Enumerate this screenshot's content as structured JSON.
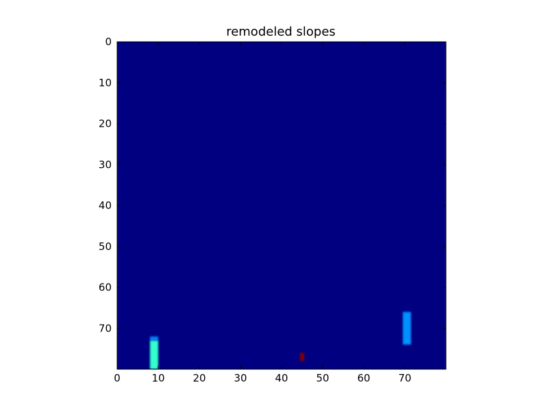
{
  "chart_data": {
    "type": "heatmap",
    "title": "remodeled slopes",
    "xlabel": "",
    "ylabel": "",
    "xlim": [
      0,
      80
    ],
    "ylim": [
      80,
      0
    ],
    "x_ticks": [
      0,
      10,
      20,
      30,
      40,
      50,
      60,
      70
    ],
    "y_ticks": [
      0,
      10,
      20,
      30,
      40,
      50,
      60,
      70
    ],
    "x_tick_labels": [
      "0",
      "10",
      "20",
      "30",
      "40",
      "50",
      "60",
      "70"
    ],
    "y_tick_labels": [
      "0",
      "10",
      "20",
      "30",
      "40",
      "50",
      "60",
      "70"
    ],
    "grid": false,
    "colormap": "jet",
    "background_color": "#000080",
    "features": [
      {
        "col_start": 8,
        "col_end": 10,
        "row_start": 72,
        "row_end": 73,
        "color": "#0080ff"
      },
      {
        "col_start": 8,
        "col_end": 10,
        "row_start": 73,
        "row_end": 80,
        "color": "#33ffcc"
      },
      {
        "col_start": 69.5,
        "col_end": 71.5,
        "row_start": 66,
        "row_end": 74,
        "color": "#0090ff"
      },
      {
        "col_start": 44.5,
        "col_end": 45.5,
        "row_start": 76,
        "row_end": 78,
        "color": "#800000"
      }
    ]
  }
}
